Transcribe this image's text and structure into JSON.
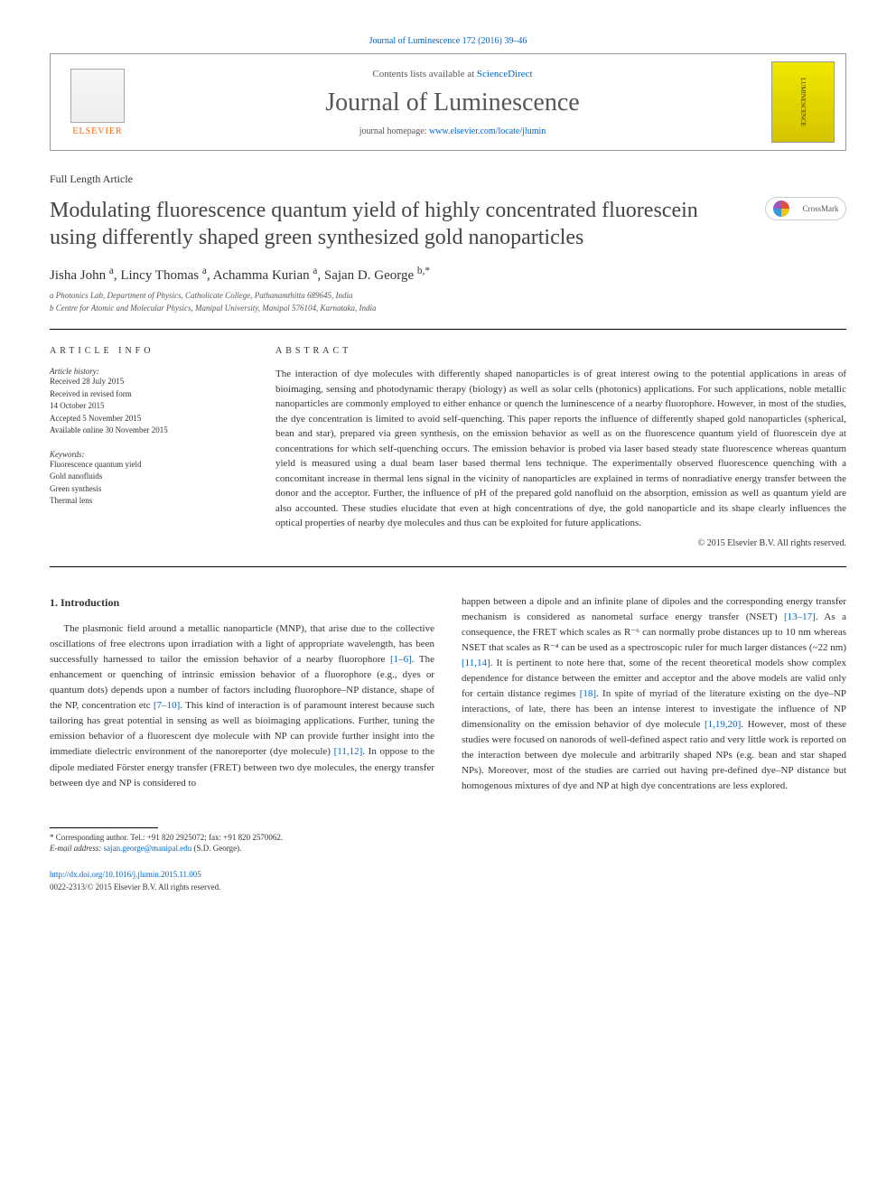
{
  "top_link": "Journal of Luminescence 172 (2016) 39–46",
  "header": {
    "contents_pre": "Contents lists available at ",
    "contents_link": "ScienceDirect",
    "journal_name": "Journal of Luminescence",
    "homepage_pre": "journal homepage: ",
    "homepage_link": "www.elsevier.com/locate/jlumin",
    "elsevier": "ELSEVIER",
    "cover_text": "LUMINESCENCE"
  },
  "article_type": "Full Length Article",
  "title": "Modulating fluorescence quantum yield of highly concentrated fluorescein using differently shaped green synthesized gold nanoparticles",
  "crossmark": "CrossMark",
  "authors_html": "Jisha John <sup>a</sup>, Lincy Thomas <sup>a</sup>, Achamma Kurian <sup>a</sup>, Sajan D. George <sup>b,*</sup>",
  "affiliations": [
    "a Photonics Lab, Department of Physics, Catholicate College, Pathanamthitta 689645, India",
    "b Centre for Atomic and Molecular Physics, Manipal University, Manipal 576104, Karnataka, India"
  ],
  "info_label": "ARTICLE INFO",
  "abstract_label": "ABSTRACT",
  "history": {
    "label": "Article history:",
    "items": [
      "Received 28 July 2015",
      "Received in revised form",
      "14 October 2015",
      "Accepted 5 November 2015",
      "Available online 30 November 2015"
    ]
  },
  "keywords": {
    "label": "Keywords:",
    "items": [
      "Fluorescence quantum yield",
      "Gold nanofluids",
      "Green synthesis",
      "Thermal lens"
    ]
  },
  "abstract": "The interaction of dye molecules with differently shaped nanoparticles is of great interest owing to the potential applications in areas of bioimaging, sensing and photodynamic therapy (biology) as well as solar cells (photonics) applications. For such applications, noble metallic nanoparticles are commonly employed to either enhance or quench the luminescence of a nearby fluorophore. However, in most of the studies, the dye concentration is limited to avoid self-quenching. This paper reports the influence of differently shaped gold nanoparticles (spherical, bean and star), prepared via green synthesis, on the emission behavior as well as on the fluorescence quantum yield of fluorescein dye at concentrations for which self-quenching occurs. The emission behavior is probed via laser based steady state fluorescence whereas quantum yield is measured using a dual beam laser based thermal lens technique. The experimentally observed fluorescence quenching with a concomitant increase in thermal lens signal in the vicinity of nanoparticles are explained in terms of nonradiative energy transfer between the donor and the acceptor. Further, the influence of pH of the prepared gold nanofluid on the absorption, emission as well as quantum yield are also accounted. These studies elucidate that even at high concentrations of dye, the gold nanoparticle and its shape clearly influences the optical properties of nearby dye molecules and thus can be exploited for future applications.",
  "abstract_copyright": "© 2015 Elsevier B.V. All rights reserved.",
  "intro_heading": "1. Introduction",
  "col1_p1_a": "The plasmonic field around a metallic nanoparticle (MNP), that arise due to the collective oscillations of free electrons upon irradiation with a light of appropriate wavelength, has been successfully harnessed to tailor the emission behavior of a nearby fluorophore ",
  "col1_ref1": "[1–6]",
  "col1_p1_b": ". The enhancement or quenching of intrinsic emission behavior of a fluorophore (e.g., dyes or quantum dots) depends upon a number of factors including fluorophore–NP distance, shape of the NP, concentration etc ",
  "col1_ref2": "[7–10]",
  "col1_p1_c": ". This kind of interaction is of paramount interest because such tailoring has great potential in sensing as well as bioimaging applications. Further, tuning the emission behavior of a fluorescent dye molecule with NP can provide further insight into the immediate dielectric environment of the nanoreporter (dye molecule) ",
  "col1_ref3": "[11,12]",
  "col1_p1_d": ". In oppose to the dipole mediated Förster energy transfer (FRET) between two dye molecules, the energy transfer between dye and NP is considered to",
  "col2_p1_a": "happen between a dipole and an infinite plane of dipoles and the corresponding energy transfer mechanism is considered as nanometal surface energy transfer (NSET) ",
  "col2_ref1": "[13–17]",
  "col2_p1_b": ". As a consequence, the FRET which scales as R⁻⁶ can normally probe distances up to 10 nm whereas NSET that scales as R⁻⁴ can be used as a spectroscopic ruler for much larger distances (~22 nm) ",
  "col2_ref2": "[11,14]",
  "col2_p1_c": ". It is pertinent to note here that, some of the recent theoretical models show complex dependence for distance between the emitter and acceptor and the above models are valid only for certain distance regimes ",
  "col2_ref3": "[18]",
  "col2_p1_d": ". In spite of myriad of the literature existing on the dye–NP interactions, of late, there has been an intense interest to investigate the influence of NP dimensionality on the emission behavior of dye molecule ",
  "col2_ref4": "[1,19,20]",
  "col2_p1_e": ". However, most of these studies were focused on nanorods of well-defined aspect ratio and very little work is reported on the interaction between dye molecule and arbitrarily shaped NPs (e.g. bean and star shaped NPs). Moreover, most of the studies are carried out having pre-defined dye–NP distance but homogenous mixtures of dye and NP at high dye concentrations are less explored.",
  "footnote": {
    "corr": "* Corresponding author. Tel.: +91 820 2925072; fax: +91 820 2570062.",
    "email_label": "E-mail address: ",
    "email": "sajan.george@manipal.edu",
    "email_post": " (S.D. George)."
  },
  "doi": "http://dx.doi.org/10.1016/j.jlumin.2015.11.005",
  "issn": "0022-2313/© 2015 Elsevier B.V. All rights reserved."
}
